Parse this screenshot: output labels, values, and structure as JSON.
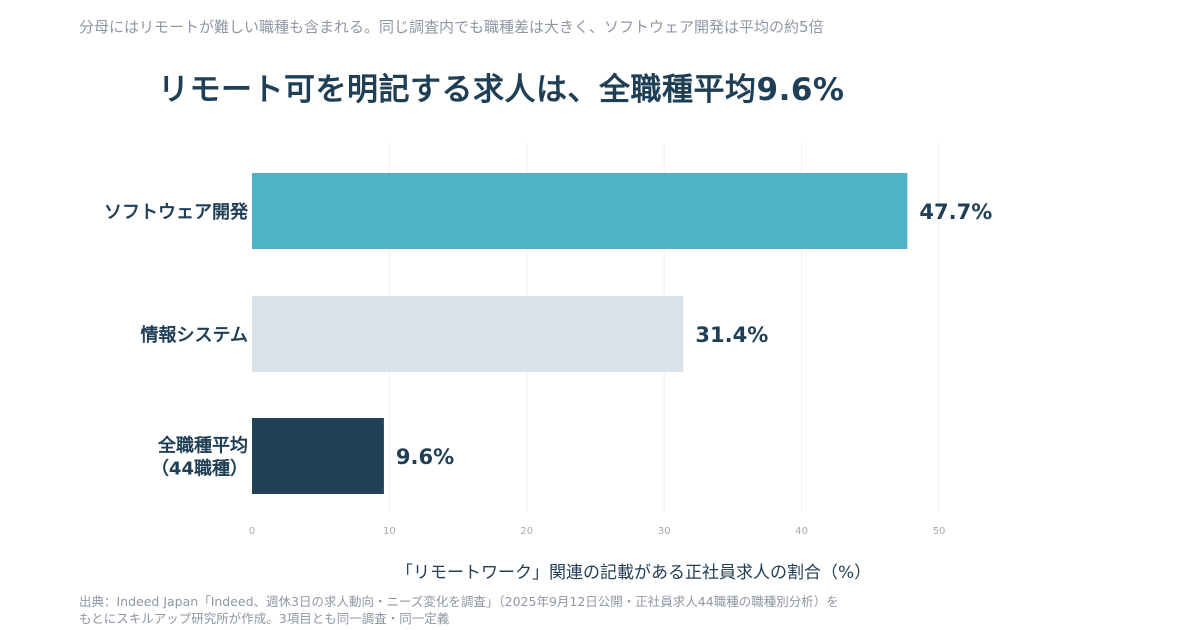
{
  "header": {
    "subtitle": "分母にはリモートが難しい職種も含まれる。同じ調査内でも職種差は大きく、ソフトウェア開発は平均の約5倍",
    "title": "リモート可を明記する求人は、全職種平均9.6%"
  },
  "chart_data": {
    "type": "bar",
    "orientation": "horizontal",
    "categories": [
      "ソフトウェア開発",
      "情報システム",
      [
        "全職種平均",
        "（44職種）"
      ]
    ],
    "values": [
      47.7,
      31.4,
      9.6
    ],
    "value_labels": [
      "47.7%",
      "31.4%",
      "9.6%"
    ],
    "colors": [
      "#4fb3c8",
      "#dbe1e8",
      "#1f4259"
    ],
    "xlim": [
      0,
      50
    ],
    "xticks": [
      0,
      10,
      20,
      30,
      40,
      50
    ],
    "xlabel": "「リモートワーク」関連の記載がある正社員求人の割合（%）",
    "grid": true
  },
  "footer": {
    "source_line1": "出典：Indeed Japan「Indeed、週休3日の求人動向・ニーズ変化を調査」（2025年9月12日公開・正社員求人44職種の職種別分析）を",
    "source_line2": "もとにスキルアップ研究所が作成。3項目とも同一調査・同一定義"
  }
}
